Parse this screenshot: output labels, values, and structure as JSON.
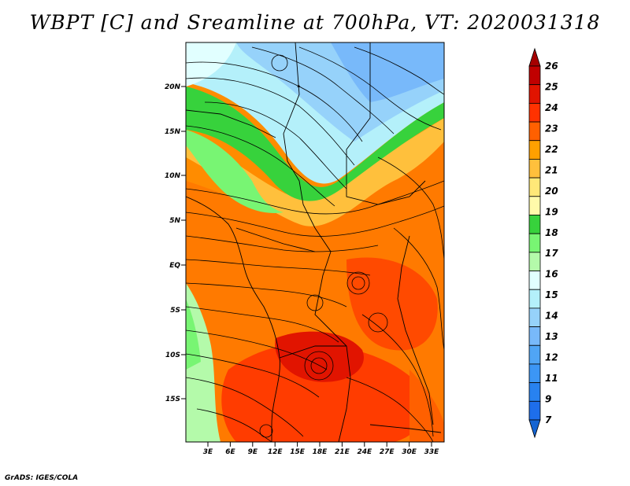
{
  "title": "WBPT [C] and Sreamline at 700hPa, VT: 2020031318",
  "credit": "GrADS: IGES/COLA",
  "map": {
    "lat_ticks": [
      "20N",
      "15N",
      "10N",
      "5N",
      "EQ",
      "5S",
      "10S",
      "15S"
    ],
    "lon_ticks": [
      "3E",
      "6E",
      "9E",
      "12E",
      "15E",
      "18E",
      "21E",
      "24E",
      "27E",
      "30E",
      "33E"
    ]
  },
  "colorbar": {
    "labels": [
      "7",
      "9",
      "11",
      "12",
      "13",
      "14",
      "15",
      "16",
      "17",
      "18",
      "19",
      "20",
      "21",
      "22",
      "23",
      "24",
      "25",
      "26"
    ],
    "colors": [
      "#1464d2",
      "#1e6eeb",
      "#2882f0",
      "#3c96f5",
      "#50a5f5",
      "#78b9fa",
      "#96d2fa",
      "#b4f0fa",
      "#e1ffff",
      "#b4faaa",
      "#78f573",
      "#37d23c",
      "#fffaaa",
      "#ffe878",
      "#ffc03c",
      "#ffa000",
      "#ff6000",
      "#ff3200",
      "#e11400",
      "#c00000",
      "#a50000"
    ]
  },
  "colors": {
    "ocean_cool": "#96d2fa",
    "warm": "#ff6000"
  }
}
